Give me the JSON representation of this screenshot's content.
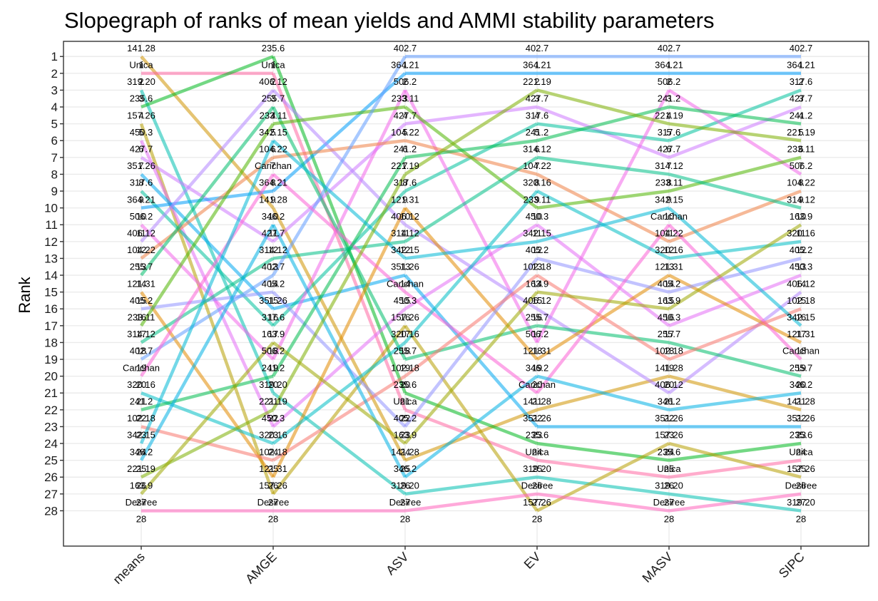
{
  "chart_data": {
    "type": "line",
    "title": "Slopegraph of ranks of mean yields and AMMI stability parameters",
    "ylabel": "Rank",
    "xlabel": "",
    "categories": [
      "means",
      "AMGE",
      "ASV",
      "EV",
      "MASV",
      "SIPC"
    ],
    "y_ticks": [
      1,
      2,
      3,
      4,
      5,
      6,
      7,
      8,
      9,
      10,
      11,
      12,
      13,
      14,
      15,
      16,
      17,
      18,
      19,
      20,
      21,
      22,
      23,
      24,
      25,
      26,
      27,
      28
    ],
    "ylim": [
      0.1,
      30.1
    ],
    "y_reversed": true,
    "grid": true,
    "rank_numbers": [
      "1",
      "2",
      "3",
      "4",
      "5",
      "6",
      "7",
      "8",
      "9",
      "10",
      "11",
      "12",
      "13",
      "14",
      "15",
      "16",
      "17",
      "18",
      "19",
      "20",
      "21",
      "22",
      "23",
      "24",
      "25",
      "26",
      "27",
      "28"
    ],
    "order": {
      "means": [
        "141.28",
        "Unica",
        "319.20",
        "235.6",
        "157.26",
        "450.3",
        "427.7",
        "351.26",
        "317.6",
        "364.21",
        "506.2",
        "406.12",
        "104.22",
        "255.7",
        "121.31",
        "405.2",
        "233.11",
        "314.12",
        "402.7",
        "Carichan",
        "320.16",
        "241.2",
        "102.18",
        "342.15",
        "346.2",
        "221.19",
        "163.9",
        "Desiree"
      ],
      "AMGE": [
        "235.6",
        "Unica",
        "406.12",
        "255.7",
        "233.11",
        "342.15",
        "104.22",
        "Carichan",
        "364.21",
        "141.28",
        "346.2",
        "427.7",
        "314.12",
        "402.7",
        "405.2",
        "351.26",
        "317.6",
        "163.9",
        "506.2",
        "241.2",
        "319.20",
        "221.19",
        "450.3",
        "320.16",
        "102.18",
        "121.31",
        "157.26",
        "Desiree"
      ],
      "ASV": [
        "402.7",
        "364.21",
        "506.2",
        "233.11",
        "427.7",
        "104.22",
        "241.2",
        "221.19",
        "317.6",
        "121.31",
        "406.12",
        "314.12",
        "342.15",
        "351.26",
        "Carichan",
        "450.3",
        "157.26",
        "320.16",
        "255.7",
        "102.18",
        "235.6",
        "Unica",
        "405.2",
        "163.9",
        "141.28",
        "346.2",
        "319.20",
        "Desiree"
      ],
      "EV": [
        "402.7",
        "364.21",
        "221.19",
        "427.7",
        "317.6",
        "241.2",
        "314.12",
        "104.22",
        "320.16",
        "233.11",
        "450.3",
        "342.15",
        "405.2",
        "102.18",
        "163.9",
        "406.12",
        "255.7",
        "506.2",
        "121.31",
        "346.2",
        "Carichan",
        "141.28",
        "351.26",
        "235.6",
        "Unica",
        "319.20",
        "Desiree",
        "157.26"
      ],
      "MASV": [
        "402.7",
        "364.21",
        "506.2",
        "241.2",
        "221.19",
        "317.6",
        "427.7",
        "314.12",
        "233.11",
        "342.15",
        "Carichan",
        "104.22",
        "320.16",
        "121.31",
        "405.2",
        "163.9",
        "450.3",
        "255.7",
        "102.18",
        "141.28",
        "406.12",
        "346.2",
        "351.26",
        "157.26",
        "235.6",
        "Unica",
        "319.20",
        "Desiree"
      ],
      "SIPC": [
        "402.7",
        "364.21",
        "317.6",
        "427.7",
        "241.2",
        "221.19",
        "233.11",
        "506.2",
        "104.22",
        "314.12",
        "163.9",
        "320.16",
        "405.2",
        "450.3",
        "406.12",
        "102.18",
        "342.15",
        "121.31",
        "Carichan",
        "255.7",
        "346.2",
        "141.28",
        "351.26",
        "235.6",
        "Unica",
        "157.26",
        "Desiree",
        "319.20"
      ]
    },
    "colors": {
      "102.18": "#F8766D",
      "104.22": "#EE8043",
      "121.31": "#E18A00",
      "141.28": "#CF9400",
      "157.26": "#B79F00",
      "163.9": "#9CA700",
      "221.19": "#7CAE00",
      "233.11": "#4EB400",
      "235.6": "#00B81F",
      "241.2": "#00BB4E",
      "255.7": "#00BE6C",
      "314.12": "#00C086",
      "317.6": "#00C19C",
      "319.20": "#00C0B1",
      "320.16": "#00BDC4",
      "342.15": "#00B8D5",
      "346.2": "#00B1E4",
      "351.26": "#00A8F0",
      "364.21": "#009DFA",
      "402.7": "#619CFF",
      "405.2": "#8F91FF",
      "406.12": "#B385FF",
      "427.7": "#CE79FF",
      "450.3": "#E36EF6",
      "506.2": "#F266EA",
      "Carichan": "#FC61D5",
      "Desiree": "#FF62BC",
      "Unica": "#FF67A2"
    }
  }
}
